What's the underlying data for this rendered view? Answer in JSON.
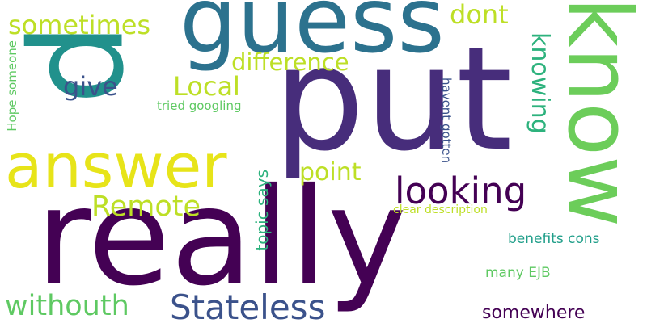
{
  "words": [
    {
      "text": "p",
      "color": "#21918c"
    },
    {
      "text": "guess",
      "color": "#2c728e"
    },
    {
      "text": "put",
      "color": "#472d7b"
    },
    {
      "text": "know",
      "color": "#6ccd5a"
    },
    {
      "text": "really",
      "color": "#440154"
    },
    {
      "text": "answer",
      "color": "#e7e419"
    },
    {
      "text": "sometimes",
      "color": "#bddf26"
    },
    {
      "text": "dont",
      "color": "#bddf26"
    },
    {
      "text": "difference",
      "color": "#bddf26"
    },
    {
      "text": "give",
      "color": "#3b528b"
    },
    {
      "text": "Local",
      "color": "#bddf26"
    },
    {
      "text": "tried googling",
      "color": "#5ec962"
    },
    {
      "text": "knowing",
      "color": "#2db27d"
    },
    {
      "text": "havent gotten",
      "color": "#3b528b"
    },
    {
      "text": "Hope someone",
      "color": "#5ec962"
    },
    {
      "text": "point",
      "color": "#bddf26"
    },
    {
      "text": "looking",
      "color": "#440154"
    },
    {
      "text": "Remote",
      "color": "#bddf26"
    },
    {
      "text": "topic says",
      "color": "#2db27d"
    },
    {
      "text": "clear description",
      "color": "#bddf26"
    },
    {
      "text": "benefits cons",
      "color": "#1f9e89"
    },
    {
      "text": "many EJB",
      "color": "#5ec962"
    },
    {
      "text": "withouth",
      "color": "#5ec962"
    },
    {
      "text": "Stateless",
      "color": "#3b528b"
    },
    {
      "text": "somewhere",
      "color": "#440154"
    }
  ]
}
